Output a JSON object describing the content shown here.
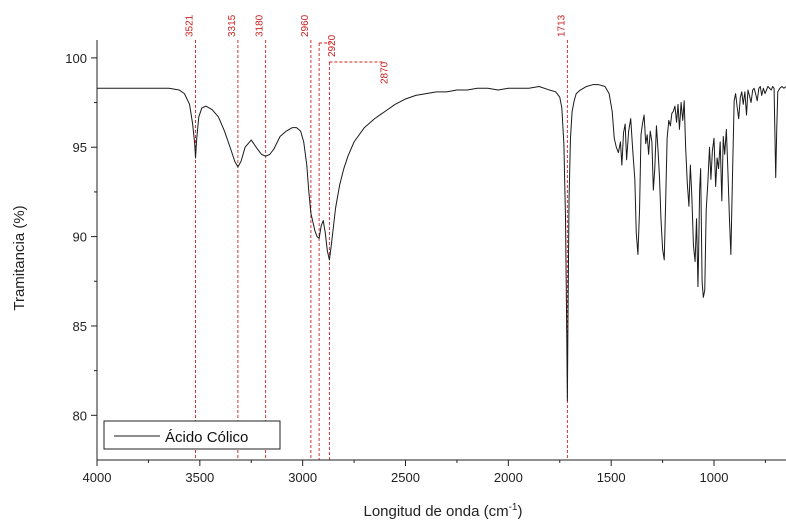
{
  "chart_data": {
    "type": "line",
    "xlabel": "Longitud de onda (cm",
    "xlabel_sup": "-1",
    "xlabel_close": ")",
    "ylabel": "Tramitancia (%)",
    "xlim": [
      4000,
      650
    ],
    "ylim": [
      77.5,
      101
    ],
    "x_reversed": true,
    "x_ticks": [
      4000,
      3500,
      3000,
      2500,
      2000,
      1500,
      1000
    ],
    "x_tick_labels": [
      "4000",
      "3500",
      "3000",
      "2500",
      "2000",
      "1500",
      "1000"
    ],
    "y_ticks": [
      80,
      85,
      90,
      95,
      100
    ],
    "y_tick_labels": [
      "80",
      "85",
      "90",
      "95",
      "100"
    ],
    "grid": false,
    "legend_position": "bottom-left",
    "colors": {
      "series": "#1a1a1a",
      "peak_markers": "#cc2020",
      "axes": "#222222"
    },
    "series": [
      {
        "name": "Ácido Cólico",
        "x": [
          4000,
          3800,
          3650,
          3600,
          3575,
          3550,
          3535,
          3525,
          3521,
          3515,
          3505,
          3490,
          3470,
          3440,
          3410,
          3380,
          3350,
          3330,
          3315,
          3300,
          3280,
          3250,
          3220,
          3200,
          3180,
          3160,
          3140,
          3110,
          3080,
          3050,
          3030,
          3010,
          2995,
          2980,
          2970,
          2960,
          2950,
          2940,
          2930,
          2920,
          2910,
          2900,
          2890,
          2880,
          2870,
          2860,
          2850,
          2840,
          2820,
          2800,
          2780,
          2750,
          2700,
          2650,
          2600,
          2550,
          2500,
          2450,
          2400,
          2350,
          2300,
          2250,
          2200,
          2150,
          2100,
          2050,
          2000,
          1950,
          1900,
          1850,
          1800,
          1770,
          1750,
          1740,
          1730,
          1722,
          1716,
          1713,
          1710,
          1705,
          1698,
          1690,
          1680,
          1670,
          1650,
          1620,
          1590,
          1560,
          1530,
          1510,
          1495,
          1485,
          1475,
          1465,
          1455,
          1448,
          1440,
          1432,
          1425,
          1415,
          1405,
          1395,
          1385,
          1378,
          1370,
          1362,
          1355,
          1348,
          1340,
          1332,
          1325,
          1318,
          1310,
          1302,
          1295,
          1288,
          1280,
          1272,
          1265,
          1258,
          1250,
          1242,
          1235,
          1228,
          1220,
          1212,
          1205,
          1198,
          1190,
          1182,
          1175,
          1168,
          1160,
          1152,
          1145,
          1138,
          1130,
          1122,
          1115,
          1108,
          1100,
          1092,
          1085,
          1078,
          1075,
          1070,
          1065,
          1058,
          1052,
          1045,
          1038,
          1030,
          1022,
          1015,
          1008,
          1000,
          992,
          985,
          978,
          970,
          962,
          955,
          948,
          940,
          932,
          925,
          918,
          910,
          902,
          895,
          888,
          880,
          872,
          865,
          858,
          850,
          842,
          835,
          828,
          820,
          812,
          805,
          798,
          790,
          782,
          775,
          768,
          760,
          752,
          745,
          738,
          730,
          722,
          715,
          708,
          700,
          695,
          690,
          680,
          670,
          660,
          650
        ],
        "y": [
          98.3,
          98.3,
          98.3,
          98.2,
          98.0,
          97.4,
          96.3,
          95.2,
          94.4,
          95.5,
          96.7,
          97.2,
          97.3,
          97.1,
          96.7,
          95.9,
          94.9,
          94.2,
          93.9,
          94.2,
          95.0,
          95.4,
          94.9,
          94.6,
          94.5,
          94.6,
          94.9,
          95.6,
          95.9,
          96.1,
          96.1,
          95.9,
          95.3,
          94.0,
          92.5,
          91.3,
          90.8,
          90.3,
          90.0,
          89.9,
          90.6,
          90.9,
          90.2,
          89.2,
          88.7,
          89.6,
          90.6,
          91.6,
          92.9,
          93.8,
          94.5,
          95.3,
          96.1,
          96.6,
          97.0,
          97.4,
          97.7,
          97.9,
          98.0,
          98.1,
          98.1,
          98.2,
          98.2,
          98.3,
          98.3,
          98.2,
          98.3,
          98.3,
          98.3,
          98.4,
          98.2,
          98.1,
          97.8,
          97.2,
          95.2,
          91.0,
          84.5,
          80.8,
          85.5,
          92.0,
          95.5,
          97.0,
          97.6,
          98.0,
          98.2,
          98.4,
          98.5,
          98.5,
          98.4,
          98.0,
          97.0,
          95.5,
          95.0,
          94.7,
          95.3,
          94.0,
          95.8,
          96.3,
          94.3,
          95.9,
          96.6,
          94.8,
          93.2,
          90.2,
          89.0,
          91.5,
          95.7,
          96.3,
          96.8,
          95.2,
          95.7,
          94.6,
          95.9,
          95.3,
          92.6,
          93.8,
          96.2,
          94.8,
          93.3,
          91.0,
          89.3,
          88.7,
          92.0,
          95.5,
          96.5,
          96.2,
          96.9,
          97.0,
          97.3,
          96.4,
          97.4,
          96.0,
          97.5,
          96.5,
          97.6,
          95.0,
          93.0,
          91.7,
          94.0,
          92.3,
          89.5,
          88.6,
          91.0,
          87.2,
          89.0,
          92.6,
          93.8,
          87.5,
          86.6,
          87.0,
          91.5,
          93.0,
          95.0,
          93.2,
          94.8,
          95.5,
          92.8,
          94.4,
          93.8,
          95.3,
          92.0,
          95.6,
          94.6,
          96.0,
          93.5,
          91.0,
          89.0,
          93.5,
          97.6,
          98.0,
          97.3,
          96.6,
          97.8,
          98.1,
          97.4,
          98.1,
          96.8,
          98.2,
          97.9,
          97.5,
          98.2,
          98.3,
          98.0,
          97.6,
          98.3,
          98.4,
          97.9,
          98.3,
          98.0,
          98.2,
          98.4,
          98.3,
          98.2,
          98.4,
          98.3,
          93.3,
          96.0,
          98.1,
          98.3,
          98.4,
          98.3,
          98.4
        ]
      }
    ],
    "peak_markers": [
      {
        "x": 3521,
        "label": "3521"
      },
      {
        "x": 3315,
        "label": "3315"
      },
      {
        "x": 3180,
        "label": "3180"
      },
      {
        "x": 2960,
        "label": "2960"
      },
      {
        "x": 2920,
        "label": "2920"
      },
      {
        "x": 2870,
        "label": "2870"
      },
      {
        "x": 1713,
        "label": "1713"
      }
    ]
  }
}
